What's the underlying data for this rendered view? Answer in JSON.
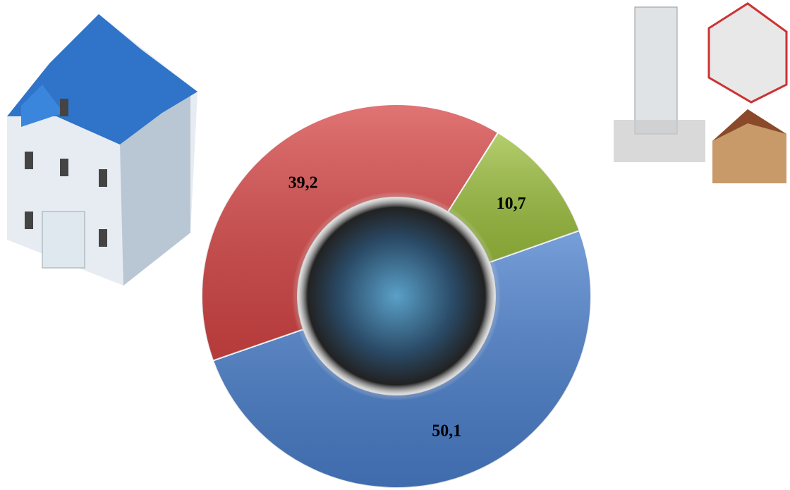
{
  "chart_data": {
    "type": "donut",
    "values": [
      50.1,
      39.2,
      10.7
    ],
    "value_labels": [
      "50,1",
      "39,2",
      "10,7"
    ],
    "colors": [
      "#4a7fcc",
      "#d64545",
      "#9cbf3e"
    ]
  }
}
